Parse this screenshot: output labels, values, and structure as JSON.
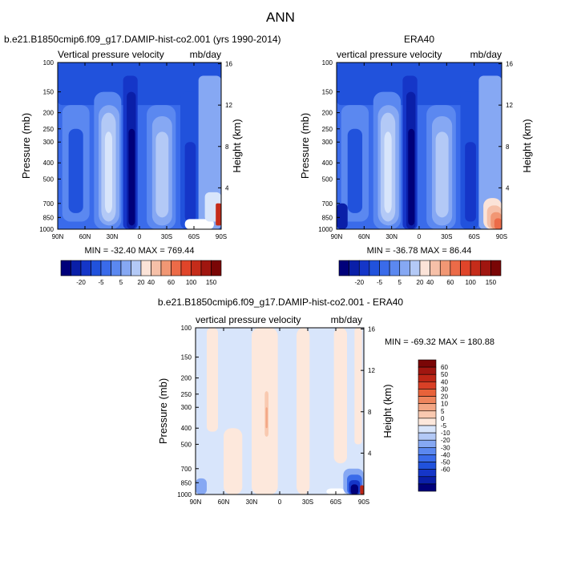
{
  "main_title": "ANN",
  "colors": {
    "blues": [
      "#00007a",
      "#0a1fa8",
      "#1536c8",
      "#2152dc",
      "#3a6bea",
      "#5b88f0",
      "#86a8f3",
      "#b3c9f6",
      "#d8e5fb"
    ],
    "reds": [
      "#fbe3d8",
      "#f6c0a8",
      "#f19774",
      "#ec6b48",
      "#e0452a",
      "#c52c1a",
      "#a01610",
      "#7a0606"
    ],
    "diff_blues": [
      "#00007a",
      "#0a1fa8",
      "#1536c8",
      "#2152dc",
      "#3a6bea",
      "#5b88f0",
      "#86a8f3",
      "#b3c9f6",
      "#d8e5fb"
    ],
    "diff_reds": [
      "#fde8dc",
      "#f9c9b0",
      "#f3a684",
      "#ee845c",
      "#e8623a",
      "#d94026",
      "#bd2616",
      "#a01610",
      "#7a0606"
    ]
  },
  "chart_data": [
    {
      "type": "heatmap",
      "title_left": "b.e21.B1850cmip6.f09_g17.DAMIP-hist-co2.001 (yrs 1990-2014)",
      "field_label": "Vertical pressure velocity",
      "units": "mb/day",
      "ylabel": "Pressure (mb)",
      "ylabel_right": "Height (km)",
      "x_ticks": [
        "90N",
        "60N",
        "30N",
        "0",
        "30S",
        "60S",
        "90S"
      ],
      "y_ticks": [
        "100",
        "150",
        "200",
        "250",
        "300",
        "400",
        "500",
        "700",
        "850",
        "1000"
      ],
      "y_ticks_right": [
        "16",
        "12",
        "8",
        "4"
      ],
      "stats": "MIN = -32.40  MAX = 769.44",
      "colorbar_labels": [
        "-20",
        "-5",
        "5",
        "20",
        "40",
        "60",
        "100",
        "150"
      ],
      "xlim": [
        90,
        -90
      ],
      "ylim_mb": [
        1000,
        100
      ],
      "log_pressure": true
    },
    {
      "type": "heatmap",
      "title_center": "ERA40",
      "field_label": "vertical pressure velocity",
      "units": "mb/day",
      "ylabel": "Pressure (mb)",
      "ylabel_right": "Height (km)",
      "x_ticks": [
        "90N",
        "60N",
        "30N",
        "0",
        "30S",
        "60S",
        "90S"
      ],
      "y_ticks": [
        "100",
        "150",
        "200",
        "250",
        "300",
        "400",
        "500",
        "700",
        "850",
        "1000"
      ],
      "y_ticks_right": [
        "16",
        "12",
        "8",
        "4"
      ],
      "stats": "MIN = -36.78  MAX = 86.44",
      "colorbar_labels": [
        "-20",
        "-5",
        "5",
        "20",
        "40",
        "60",
        "100",
        "150"
      ],
      "xlim": [
        90,
        -90
      ],
      "ylim_mb": [
        1000,
        100
      ],
      "log_pressure": true
    },
    {
      "type": "heatmap",
      "title_center": "b.e21.B1850cmip6.f09_g17.DAMIP-hist-co2.001 - ERA40",
      "field_label": "vertical pressure velocity",
      "units": "mb/day",
      "ylabel": "Pressure (mb)",
      "ylabel_right": "Height (km)",
      "x_ticks": [
        "90N",
        "60N",
        "30N",
        "0",
        "30S",
        "60S",
        "90S"
      ],
      "y_ticks": [
        "100",
        "150",
        "200",
        "250",
        "300",
        "400",
        "500",
        "700",
        "850",
        "1000"
      ],
      "y_ticks_right": [
        "16",
        "12",
        "8",
        "4"
      ],
      "stats": "MIN = -69.32  MAX = 180.88",
      "colorbar_labels": [
        "60",
        "50",
        "40",
        "30",
        "20",
        "10",
        "5",
        "0",
        "-5",
        "-10",
        "-20",
        "-30",
        "-40",
        "-50",
        "-60"
      ],
      "xlim": [
        90,
        -90
      ],
      "ylim_mb": [
        1000,
        100
      ],
      "log_pressure": true
    }
  ]
}
